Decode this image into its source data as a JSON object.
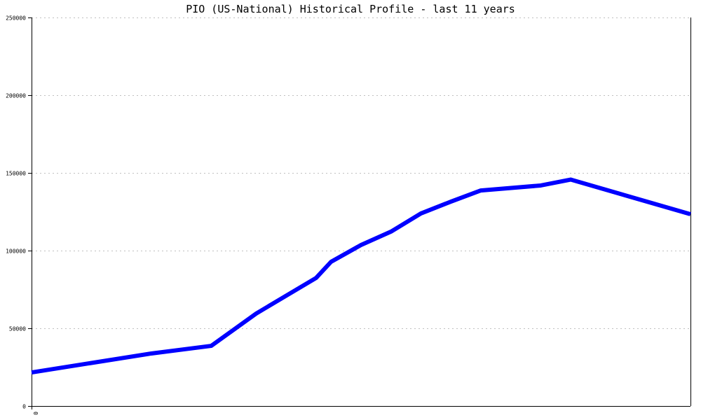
{
  "chart_data": {
    "type": "line",
    "title": "PIO (US-National) Historical Profile - last 11 years",
    "xlabel": "",
    "ylabel": "",
    "xlim": [
      0,
      11
    ],
    "ylim": [
      0,
      250000
    ],
    "x_tick_labels": [
      "0"
    ],
    "y_ticks": [
      0,
      50000,
      100000,
      150000,
      200000,
      250000
    ],
    "y_tick_labels": [
      "0",
      "50000",
      "100000",
      "150000",
      "200000",
      "250000"
    ],
    "grid": "horizontal dotted",
    "legend": "none",
    "series": [
      {
        "color": "#0000ff",
        "x": [
          0,
          2,
          3,
          3.75,
          4.75,
          5,
          5.5,
          6,
          6.5,
          7,
          7.5,
          8.5,
          9,
          11
        ],
        "values": [
          21600,
          33800,
          38700,
          59500,
          82400,
          92800,
          103600,
          112200,
          123900,
          131500,
          138700,
          141900,
          145700,
          123400
        ]
      }
    ]
  }
}
